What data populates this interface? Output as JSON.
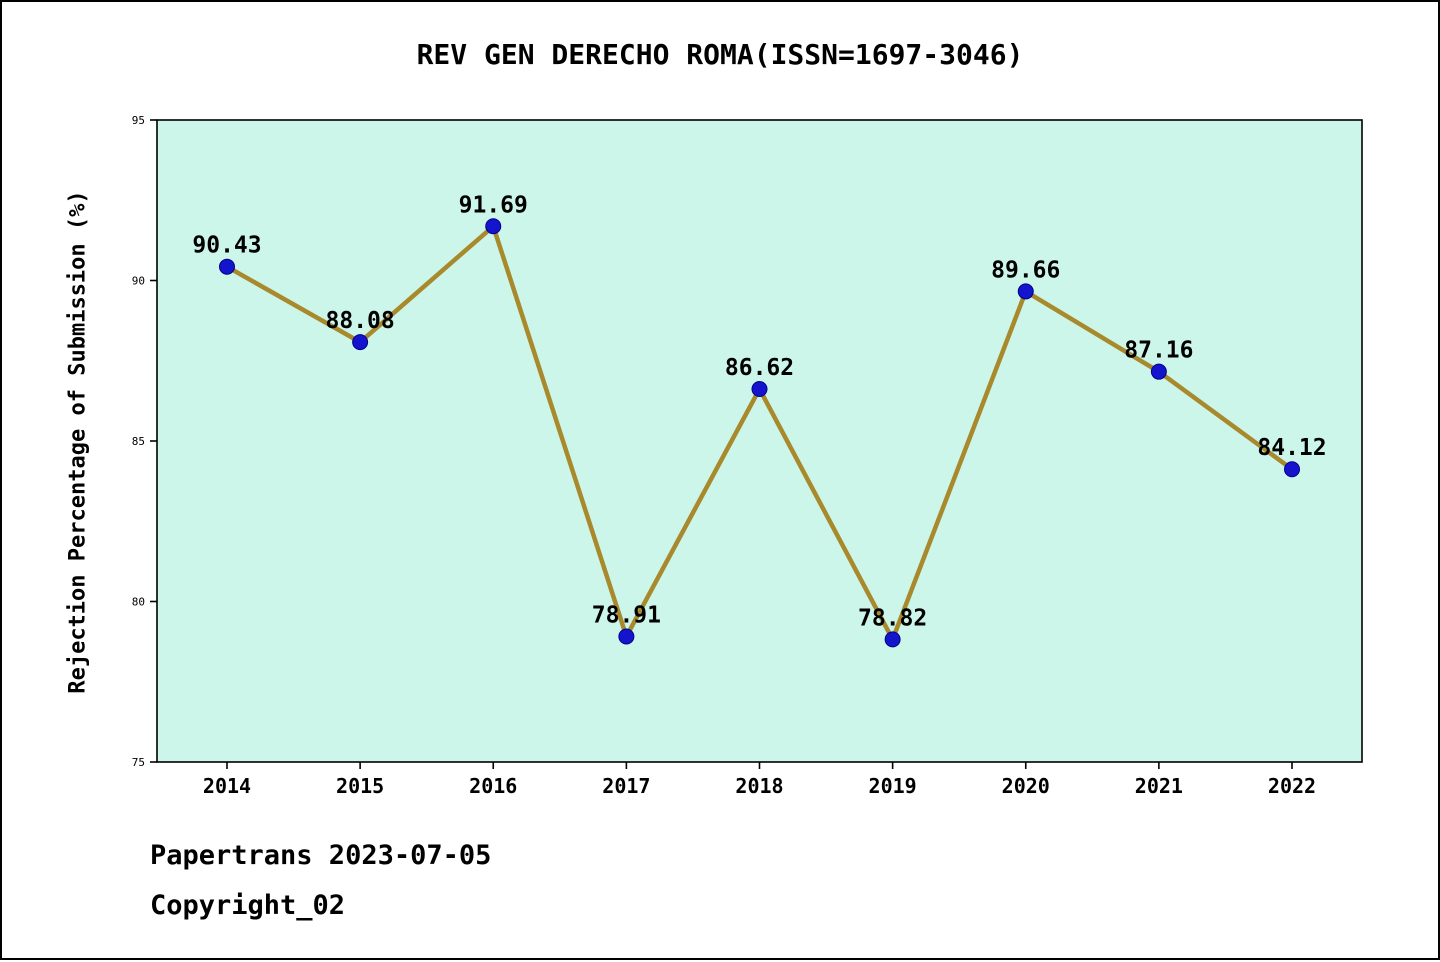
{
  "title": "REV GEN DERECHO ROMA(ISSN=1697-3046)",
  "footer": {
    "line1": "Papertrans 2023-07-05",
    "line2": "Copyright_02"
  },
  "chart_data": {
    "type": "line",
    "title": "REV GEN DERECHO ROMA(ISSN=1697-3046)",
    "categories": [
      "2014",
      "2015",
      "2016",
      "2017",
      "2018",
      "2019",
      "2020",
      "2021",
      "2022"
    ],
    "values": [
      90.43,
      88.08,
      91.69,
      78.91,
      86.62,
      78.82,
      89.66,
      87.16,
      84.12
    ],
    "xlabel": "",
    "ylabel": "Rejection Percentage of Submission (%)",
    "ylim": [
      75,
      95
    ],
    "yticks": [
      75,
      80,
      85,
      90,
      95
    ],
    "grid": false,
    "legend": false,
    "colors": {
      "line": "#a8892b",
      "marker": "#1414cc",
      "marker_edge": "#00008b",
      "plot_bg": "#ccf6ea",
      "axis": "#000000",
      "label_text": "#000000"
    }
  }
}
